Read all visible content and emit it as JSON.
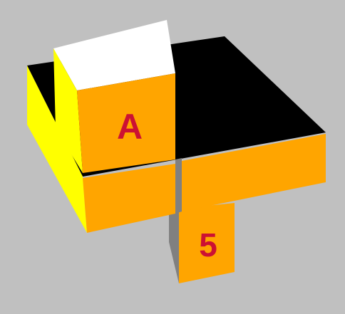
{
  "colors": {
    "background": "#c0c0c0",
    "top_dark": "#000000",
    "top_light": "#ffffff",
    "front": "#ffa500",
    "side_lit": "#ffff00",
    "side_shadow": "#808080",
    "label": "#cc1133"
  },
  "puzzle": {
    "face_labels": {
      "upper_front": "A",
      "lower_front": "5"
    }
  }
}
